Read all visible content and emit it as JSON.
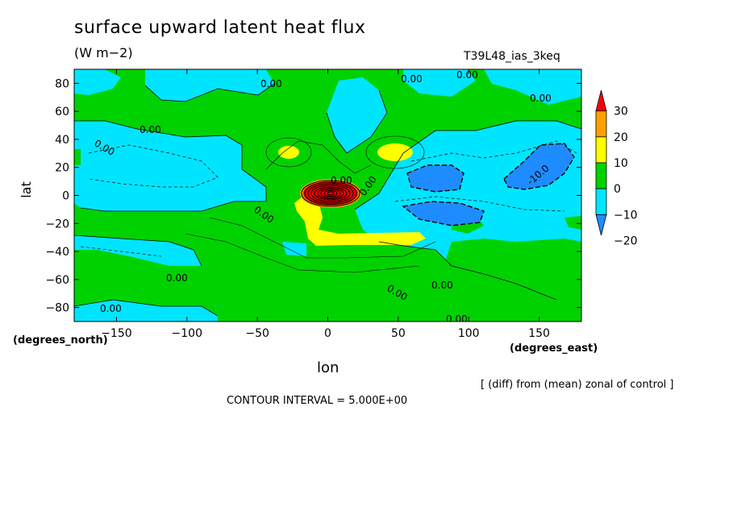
{
  "figure": {
    "title": "surface upward latent heat flux",
    "units": "(W m−2)",
    "run_label": "T39L48_ias_3keq",
    "ylabel": "lat",
    "ylabel_units": "(degrees_north)",
    "xlabel": "lon",
    "xlabel_units": "(degrees_east)",
    "note": "[ (diff) from (mean) zonal of control ]",
    "contour_interval": "CONTOUR INTERVAL = 5.000E+00"
  },
  "chart_data": {
    "type": "heatmap",
    "title": "surface upward latent heat flux",
    "xlabel": "lon",
    "ylabel": "lat",
    "xlim": [
      -180,
      180
    ],
    "ylim": [
      -90,
      90
    ],
    "x_ticks": [
      -150,
      -100,
      -50,
      0,
      50,
      100,
      150
    ],
    "y_ticks": [
      -80,
      -60,
      -40,
      -20,
      0,
      20,
      40,
      60,
      80
    ],
    "colorbar": {
      "levels": [
        -20,
        -10,
        0,
        10,
        20,
        30
      ],
      "colors": [
        "#1e8cff",
        "#00e5ff",
        "#00d200",
        "#ffff00",
        "#ffa000",
        "#ff0000"
      ]
    },
    "contour_labels": [
      "0.00",
      "0.00",
      "0.00",
      "0.00",
      "0.00",
      "0.00",
      "0.00",
      "0.00",
      "0.00",
      "0.00",
      "0.00",
      "0.00",
      "0.00",
      "0.00",
      "-10.0"
    ],
    "contour_interval": 5.0
  }
}
